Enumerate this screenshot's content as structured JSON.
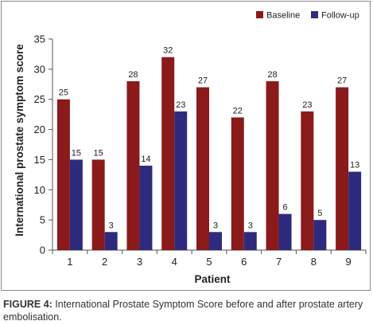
{
  "chart_data": {
    "type": "bar",
    "categories": [
      "1",
      "2",
      "3",
      "4",
      "5",
      "6",
      "7",
      "8",
      "9"
    ],
    "series": [
      {
        "name": "Baseline",
        "values": [
          25,
          15,
          28,
          32,
          27,
          22,
          28,
          23,
          27
        ],
        "color": "#8B1A1A"
      },
      {
        "name": "Follow-up",
        "values": [
          15,
          3,
          14,
          23,
          3,
          3,
          6,
          5,
          13
        ],
        "color": "#2E2B7E"
      }
    ],
    "title": "",
    "xlabel": "Patient",
    "ylabel": "International prostate symptom score",
    "ylim": [
      0,
      35
    ],
    "yticks": [
      0,
      5,
      10,
      15,
      20,
      25,
      30,
      35
    ],
    "grid": false,
    "legend_position": "top-right",
    "data_labels": true
  },
  "caption": {
    "label": "FIGURE 4:",
    "text": " International Prostate Symptom Score before and after prostate artery embolisation."
  }
}
